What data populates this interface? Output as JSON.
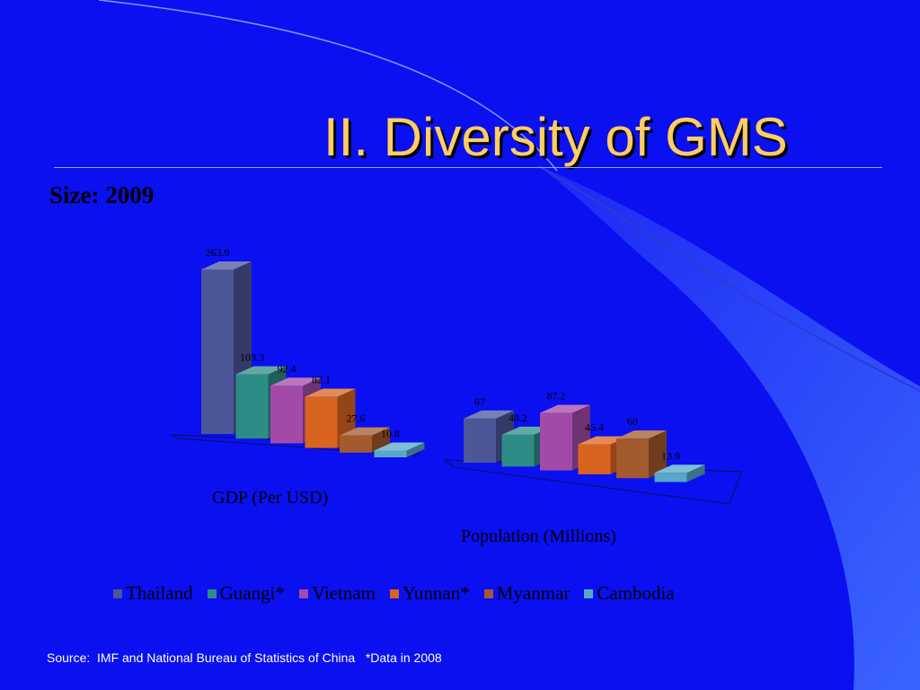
{
  "slide": {
    "title": "II. Diversity of GMS",
    "heading": "Size: 2009",
    "source": "Source:  IMF and National Bureau of Statistics of China   *Data in 2008"
  },
  "colors": {
    "background": "#0a10f0",
    "title": "#ffcc66",
    "Thailand": "#4c5699",
    "Guangi*": "#2e8c86",
    "Vietnam": "#a34aa8",
    "Yunnan*": "#d9641f",
    "Myanmar": "#a35a2c",
    "Cambodia": "#56a7c9"
  },
  "chart_data": {
    "type": "bar",
    "style": "3d-clustered-column",
    "categories": [
      "GDP (Per USD)",
      "Population (Millions)"
    ],
    "series": [
      {
        "name": "Thailand",
        "values": [
          263.9,
          67
        ],
        "labels": [
          "263.9",
          "67"
        ]
      },
      {
        "name": "Guangi*",
        "values": [
          103.3,
          48.2
        ],
        "labels": [
          "103.3",
          "48.2"
        ]
      },
      {
        "name": "Vietnam",
        "values": [
          92.4,
          87.2
        ],
        "labels": [
          "92.4",
          "87.2"
        ]
      },
      {
        "name": "Yunnan*",
        "values": [
          82.1,
          45.4
        ],
        "labels": [
          "82.1",
          "45.4"
        ]
      },
      {
        "name": "Myanmar",
        "values": [
          27.6,
          60
        ],
        "labels": [
          "27.6",
          "60"
        ]
      },
      {
        "name": "Cambodia",
        "values": [
          10.8,
          13.9
        ],
        "labels": [
          "10.8",
          "13.9"
        ]
      }
    ],
    "legend_position": "bottom",
    "grid": false,
    "independent_scales": true
  }
}
